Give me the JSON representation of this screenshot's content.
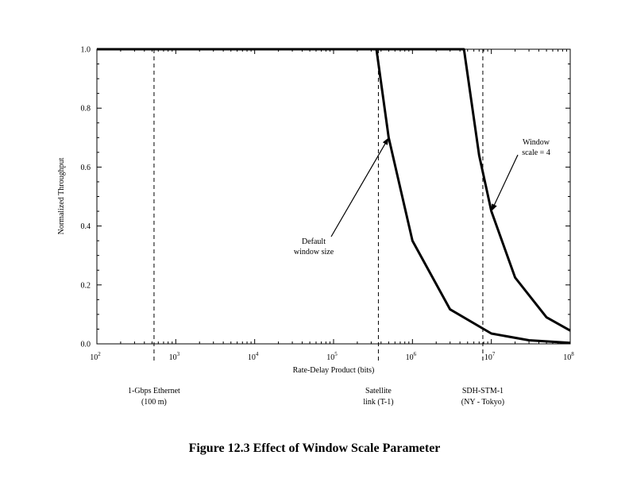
{
  "caption": "Figure 12.3   Effect of Window Scale Parameter",
  "chart_data": {
    "type": "line",
    "title": "",
    "xlabel": "Rate-Delay Product (bits)",
    "ylabel": "Normalized Throughput",
    "xscale": "log",
    "xlim": [
      100,
      100000000
    ],
    "ylim": [
      0,
      1.0
    ],
    "xticks": [
      {
        "value": 100,
        "base": "10",
        "exp": "2"
      },
      {
        "value": 1000,
        "base": "10",
        "exp": "3"
      },
      {
        "value": 10000,
        "base": "10",
        "exp": "4"
      },
      {
        "value": 100000,
        "base": "10",
        "exp": "5"
      },
      {
        "value": 1000000,
        "base": "10",
        "exp": "6"
      },
      {
        "value": 10000000,
        "base": "10",
        "exp": "7"
      },
      {
        "value": 100000000,
        "base": "10",
        "exp": "8"
      }
    ],
    "yticks": [
      {
        "value": 0.0,
        "label": "0.0"
      },
      {
        "value": 0.2,
        "label": "0.2"
      },
      {
        "value": 0.4,
        "label": "0.4"
      },
      {
        "value": 0.6,
        "label": "0.6"
      },
      {
        "value": 0.8,
        "label": "0.8"
      },
      {
        "value": 1.0,
        "label": "1.0"
      }
    ],
    "grid": false,
    "series": [
      {
        "name": "",
        "x": [
          100,
          1000,
          10000,
          100000,
          350000,
          500000,
          1000000,
          3000000,
          10000000,
          30000000,
          100000000
        ],
        "y": [
          1.0,
          1.0,
          1.0,
          1.0,
          1.0,
          0.7,
          0.35,
          0.117,
          0.035,
          0.012,
          0.0035
        ]
      },
      {
        "name": "",
        "x": [
          100,
          1000,
          10000,
          100000,
          1000000,
          4500000,
          7000000,
          10000000,
          20000000,
          50000000,
          100000000
        ],
        "y": [
          1.0,
          1.0,
          1.0,
          1.0,
          1.0,
          1.0,
          0.64,
          0.45,
          0.225,
          0.09,
          0.045
        ]
      }
    ],
    "reference_lines": [
      {
        "x": 530,
        "label_lines": [
          "1-Gbps Ethernet",
          "(100 m)"
        ]
      },
      {
        "x": 370000,
        "label_lines": [
          "Satellite",
          "link (T-1)"
        ]
      },
      {
        "x": 7800000,
        "label_lines": [
          "SDH-STM-1",
          "(NY - Tokyo)"
        ]
      }
    ],
    "annotations": [
      {
        "lines": [
          "Default",
          "window size"
        ],
        "series_index": 0,
        "point_x": 500000
      },
      {
        "lines": [
          "Window",
          "scale = 4"
        ],
        "series_index": 1,
        "point_x": 10000000
      }
    ]
  }
}
